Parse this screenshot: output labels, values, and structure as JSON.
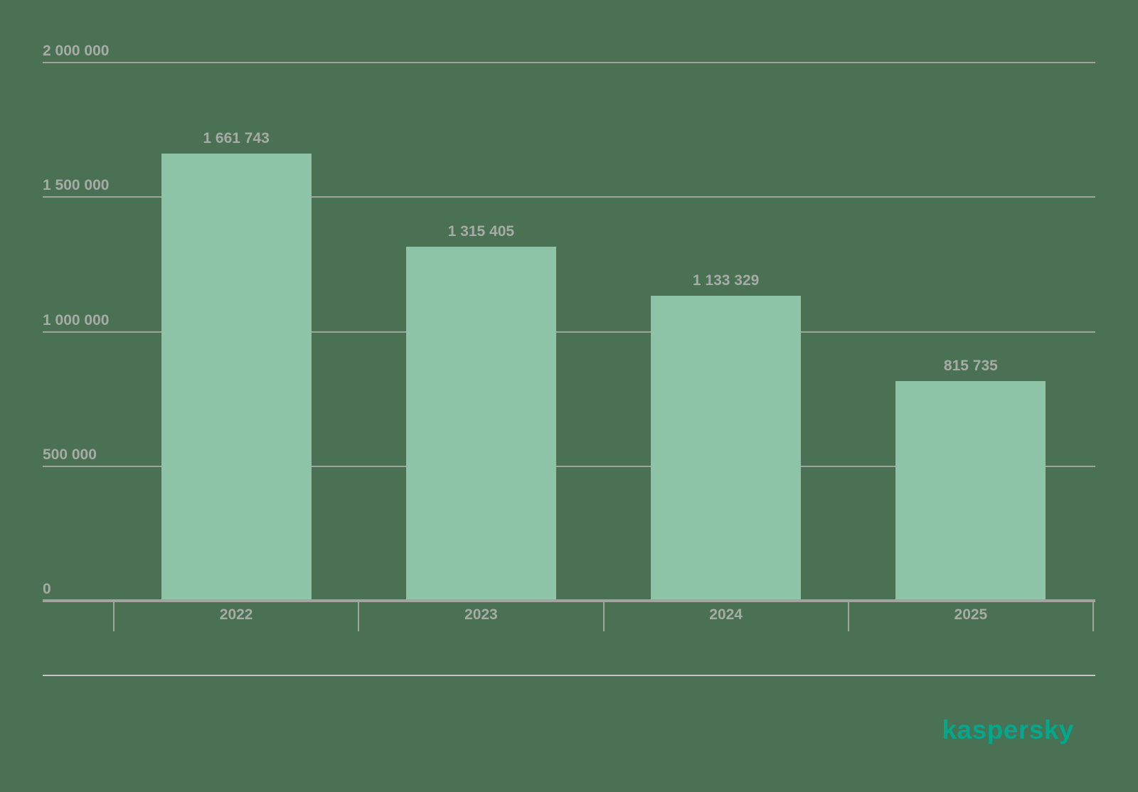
{
  "chart_data": {
    "type": "bar",
    "title": "",
    "xlabel": "",
    "ylabel": "",
    "categories": [
      "2022",
      "2023",
      "2024",
      "2025"
    ],
    "values": [
      1661743,
      1315405,
      1133329,
      815735
    ],
    "value_labels": [
      "1 661 743",
      "1 315 405",
      "1 133 329",
      "815 735"
    ],
    "y_axis": {
      "ylim": [
        0,
        2000000
      ],
      "ticks": [
        {
          "value": 2000000,
          "label": "2 000 000"
        },
        {
          "value": 1500000,
          "label": "1 500 000"
        },
        {
          "value": 1000000,
          "label": "1 000 000"
        },
        {
          "value": 500000,
          "label": "500 000"
        },
        {
          "value": 0,
          "label": "0"
        }
      ]
    },
    "grid": true,
    "legend": null,
    "colors": {
      "background": "#4A7153",
      "bar": "#8DC3A7",
      "axis": "#A0A5A0",
      "gridline": "#9FA49F",
      "text": "#A6ABA6",
      "separator": "#C2C7C2"
    }
  },
  "branding": {
    "logo_text": "kaspersky",
    "logo_color": "#00A88E"
  }
}
